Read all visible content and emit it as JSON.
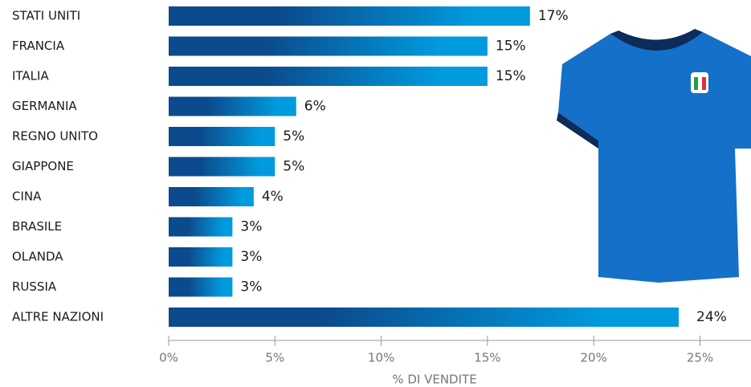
{
  "chart_data": {
    "type": "hbar",
    "x_label": "% DI VENDITE",
    "categories": [
      "STATI UNITI",
      "FRANCIA",
      "ITALIA",
      "GERMANIA",
      "REGNO UNITO",
      "GIAPPONE",
      "CINA",
      "BRASILE",
      "OLANDA",
      "RUSSIA",
      "ALTRE NAZIONI"
    ],
    "values": [
      17,
      15,
      15,
      6,
      5,
      5,
      4,
      3,
      3,
      3,
      24
    ],
    "value_labels": [
      "17%",
      "15%",
      "15%",
      "6%",
      "5%",
      "5%",
      "4%",
      "3%",
      "3%",
      "3%",
      "24%"
    ],
    "gradient_colors": [
      "#0b4a8c",
      "#009ade"
    ],
    "xlim": [
      0,
      27.4
    ],
    "xticks": [
      {
        "value": 0,
        "label": "0%"
      },
      {
        "value": 5,
        "label": "5%"
      },
      {
        "value": 10,
        "label": "10%"
      },
      {
        "value": 15,
        "label": "15%"
      },
      {
        "value": 20,
        "label": "20%"
      },
      {
        "value": 25,
        "label": "25%"
      }
    ]
  }
}
